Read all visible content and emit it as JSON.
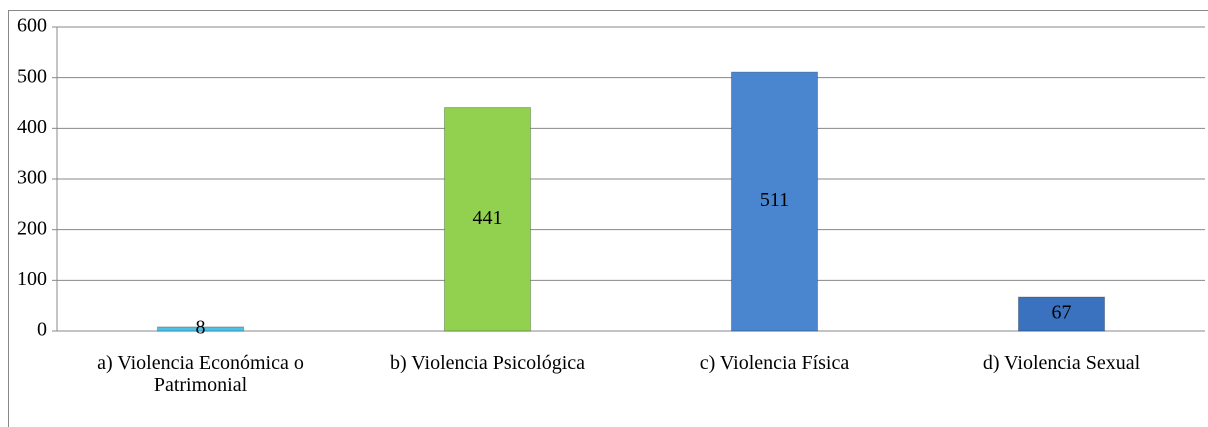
{
  "chart_data": {
    "type": "bar",
    "categories": [
      "a) Violencia Económica o Patrimonial",
      "b) Violencia Psicológica",
      "c) Violencia Física",
      "d) Violencia Sexual"
    ],
    "values": [
      8,
      441,
      511,
      67
    ],
    "colors": [
      "#4cc3e6",
      "#92d050",
      "#4a86d0",
      "#3a72c0"
    ],
    "ylim": [
      0,
      600
    ],
    "yticks": [
      0,
      100,
      200,
      300,
      400,
      500,
      600
    ],
    "grid": true
  }
}
